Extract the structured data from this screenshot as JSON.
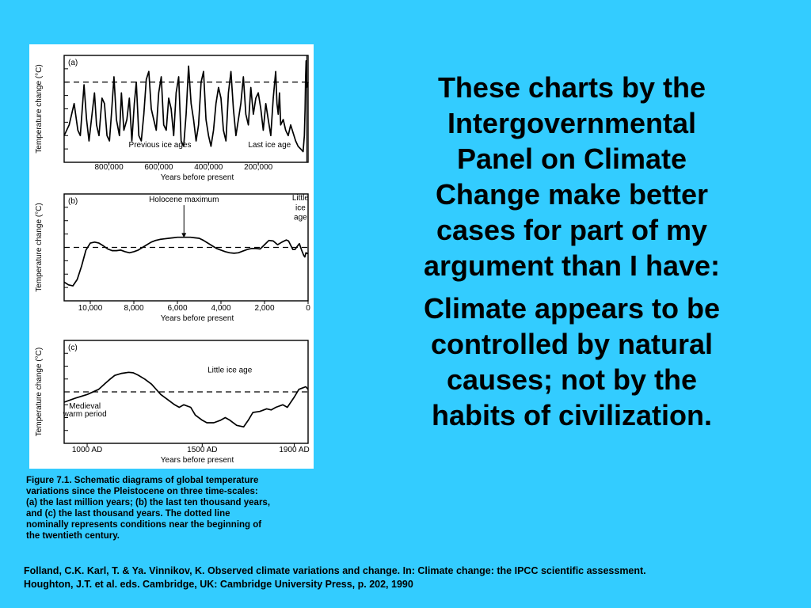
{
  "colors": {
    "background": "#33ccff",
    "panel": "#ffffff",
    "ink": "#000000"
  },
  "headline": {
    "paragraph1": [
      "These charts by the",
      "Intergovernmental",
      "Panel on Climate",
      "Change make better",
      "cases for part of my",
      "argument than I have:"
    ],
    "paragraph2": [
      "Climate appears to be",
      "controlled by natural",
      "causes; not by the",
      "habits of civilization."
    ]
  },
  "caption": {
    "lines": [
      "Figure 7.1. Schematic diagrams of global temperature",
      "variations since the Pleistocene on three time-scales:",
      "(a) the last million years; (b) the last ten thousand years,",
      "and (c) the last thousand years. The dotted line",
      "nominally represents conditions near the beginning of",
      "the twentieth century."
    ]
  },
  "citation": {
    "lines": [
      "Folland, C.K. Karl, T. & Ya. Vinnikov, K. Observed climate variations and change. In: Climate change: the IPCC scientific assessment.",
      "Houghton, J.T. et al. eds. Cambridge, UK: Cambridge University Press, p. 202, 1990"
    ]
  },
  "chart_data": [
    {
      "type": "line",
      "panel_label": "(a)",
      "ylabel": "Temperature change (°C)",
      "xlabel": "Years before present",
      "xlim": [
        980000,
        0
      ],
      "ylim": [
        -1,
        1
      ],
      "xticks": [
        800000,
        600000,
        400000,
        200000
      ],
      "xtick_labels": [
        "800,000",
        "600,000",
        "400,000",
        "200,000"
      ],
      "reference_line": 0.5,
      "annotations": [
        {
          "text": "Previous ice ages",
          "x": 595000,
          "y": -0.72
        },
        {
          "text": "Last ice age",
          "x": 155000,
          "y": -0.72
        }
      ],
      "series": [
        {
          "x": [
            980000,
            960000,
            940000,
            925000,
            915000,
            900000,
            890000,
            880000,
            868000,
            858000,
            850000,
            840000,
            828000,
            818000,
            808000,
            798000,
            790000,
            780000,
            770000,
            758000,
            750000,
            740000,
            728000,
            718000,
            708000,
            698000,
            690000,
            680000,
            670000,
            660000,
            650000,
            640000,
            630000,
            620000,
            610000,
            600000,
            590000,
            580000,
            570000,
            560000,
            550000,
            540000,
            530000,
            520000,
            510000,
            500000,
            490000,
            480000,
            470000,
            460000,
            450000,
            440000,
            430000,
            420000,
            410000,
            400000,
            390000,
            380000,
            370000,
            360000,
            350000,
            340000,
            330000,
            320000,
            310000,
            300000,
            290000,
            280000,
            270000,
            260000,
            250000,
            240000,
            230000,
            220000,
            210000,
            200000,
            190000,
            180000,
            170000,
            160000,
            150000,
            140000,
            130000,
            125000,
            120000,
            115000,
            110000,
            100000,
            90000,
            80000,
            70000,
            60000,
            50000,
            40000,
            30000,
            20000,
            15000,
            12000,
            10000,
            8000,
            5000,
            0
          ],
          "values": [
            -0.5,
            -0.3,
            0.1,
            -0.4,
            -0.5,
            0.45,
            -0.2,
            -0.6,
            -0.1,
            0.3,
            -0.3,
            -0.5,
            0.2,
            0.1,
            -0.5,
            -0.6,
            -0.1,
            0.6,
            -0.2,
            -0.5,
            0.3,
            -0.4,
            -0.2,
            0.2,
            -0.6,
            0.1,
            0.5,
            -0.5,
            -0.6,
            -0.1,
            0.55,
            0.7,
            0.0,
            -0.2,
            -0.4,
            0.3,
            0.6,
            -0.3,
            -0.4,
            0.2,
            0.0,
            -0.5,
            0.3,
            0.6,
            -0.6,
            -0.7,
            -0.1,
            0.8,
            0.1,
            -0.2,
            -0.6,
            -0.3,
            0.5,
            0.7,
            -0.2,
            -0.5,
            -0.7,
            -0.4,
            0.1,
            0.4,
            0.2,
            -0.4,
            -0.6,
            0.3,
            0.7,
            0.0,
            -0.5,
            -0.2,
            0.1,
            0.6,
            -0.1,
            -0.3,
            0.4,
            -0.1,
            0.2,
            0.3,
            0.0,
            -0.4,
            0.1,
            -0.2,
            -0.5,
            0.2,
            0.7,
            0.1,
            -0.1,
            0.3,
            -0.3,
            -0.2,
            -0.4,
            -0.5,
            -0.3,
            -0.45,
            -0.6,
            -0.7,
            -0.75,
            -0.8,
            -0.5,
            0.0,
            0.6,
            0.9,
            0.4,
            0.5
          ]
        }
      ]
    },
    {
      "type": "line",
      "panel_label": "(b)",
      "ylabel": "Temperature change (°C)",
      "xlabel": "Years before present",
      "xlim": [
        11200,
        0
      ],
      "ylim": [
        -1,
        1
      ],
      "xticks": [
        10000,
        8000,
        6000,
        4000,
        2000,
        0
      ],
      "xtick_labels": [
        "10,000",
        "8,000",
        "6,000",
        "4,000",
        "2,000",
        "0"
      ],
      "reference_line": 0,
      "annotations": [
        {
          "text": "Holocene maximum",
          "x": 5700,
          "y": 0.85,
          "arrow_to": {
            "x": 5700,
            "y": 0.18
          }
        },
        {
          "text": "Little",
          "x": 350,
          "y": 0.88
        },
        {
          "text": "ice",
          "x": 350,
          "y": 0.7
        },
        {
          "text": "age",
          "x": 350,
          "y": 0.52
        }
      ],
      "series": [
        {
          "x": [
            11200,
            11000,
            10800,
            10600,
            10400,
            10200,
            10000,
            9800,
            9600,
            9400,
            9200,
            9000,
            8800,
            8600,
            8400,
            8200,
            8000,
            7800,
            7600,
            7400,
            7200,
            7000,
            6800,
            6600,
            6400,
            6200,
            6000,
            5800,
            5600,
            5400,
            5200,
            5000,
            4800,
            4600,
            4400,
            4200,
            4000,
            3800,
            3600,
            3400,
            3200,
            3000,
            2800,
            2600,
            2400,
            2200,
            2000,
            1800,
            1600,
            1400,
            1200,
            1000,
            900,
            800,
            700,
            600,
            500,
            400,
            300,
            200,
            150,
            100,
            0
          ],
          "values": [
            -0.65,
            -0.7,
            -0.72,
            -0.6,
            -0.35,
            -0.05,
            0.08,
            0.1,
            0.08,
            0.03,
            -0.03,
            -0.06,
            -0.06,
            -0.05,
            -0.08,
            -0.1,
            -0.08,
            -0.05,
            0.0,
            0.05,
            0.1,
            0.13,
            0.15,
            0.16,
            0.17,
            0.18,
            0.19,
            0.19,
            0.19,
            0.19,
            0.18,
            0.17,
            0.13,
            0.08,
            0.03,
            -0.02,
            -0.05,
            -0.08,
            -0.1,
            -0.11,
            -0.1,
            -0.07,
            -0.04,
            -0.02,
            -0.02,
            -0.03,
            0.05,
            0.13,
            0.12,
            0.05,
            0.1,
            0.14,
            0.12,
            0.04,
            -0.04,
            -0.04,
            0.02,
            0.07,
            -0.05,
            -0.15,
            -0.18,
            -0.1,
            -0.12
          ]
        }
      ]
    },
    {
      "type": "line",
      "panel_label": "(c)",
      "ylabel": "Temperature change (°C)",
      "xlabel": "Years before present",
      "xlim": [
        900,
        1960
      ],
      "ylim": [
        -1,
        1
      ],
      "xticks": [
        1000,
        1500,
        1900
      ],
      "xtick_labels": [
        "1000 AD",
        "1500 AD",
        "1900 AD"
      ],
      "reference_line": 0,
      "annotations": [
        {
          "text": "Little ice age",
          "x": 1620,
          "y": 0.38
        },
        {
          "text": "Medieval",
          "x": 990,
          "y": -0.32
        },
        {
          "text": "warm period",
          "x": 990,
          "y": -0.48
        }
      ],
      "series": [
        {
          "x": [
            900,
            950,
            1000,
            1050,
            1080,
            1100,
            1120,
            1150,
            1180,
            1200,
            1220,
            1250,
            1280,
            1300,
            1320,
            1350,
            1380,
            1400,
            1420,
            1450,
            1470,
            1500,
            1520,
            1550,
            1580,
            1600,
            1620,
            1650,
            1680,
            1700,
            1720,
            1750,
            1780,
            1800,
            1820,
            1850,
            1870,
            1900,
            1920,
            1950,
            1960
          ],
          "values": [
            -0.2,
            -0.12,
            -0.05,
            0.05,
            0.17,
            0.25,
            0.32,
            0.36,
            0.38,
            0.37,
            0.33,
            0.25,
            0.15,
            0.05,
            -0.05,
            -0.15,
            -0.25,
            -0.3,
            -0.25,
            -0.3,
            -0.45,
            -0.55,
            -0.6,
            -0.6,
            -0.55,
            -0.5,
            -0.55,
            -0.65,
            -0.68,
            -0.55,
            -0.4,
            -0.38,
            -0.33,
            -0.35,
            -0.3,
            -0.25,
            -0.3,
            -0.1,
            0.05,
            0.1,
            0.05
          ]
        }
      ]
    }
  ]
}
